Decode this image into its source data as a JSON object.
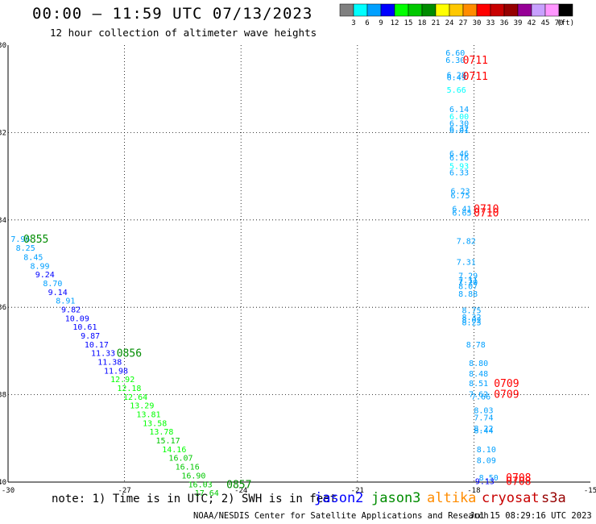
{
  "header": {
    "title": "00:00 – 11:59 UTC 07/13/2023",
    "subtitle": "12 hour collection of altimeter wave heights"
  },
  "colorbar": {
    "unit": "(ft)",
    "swatches": [
      "#808080",
      "#00ffff",
      "#00a0ff",
      "#0000ff",
      "#00ff00",
      "#00c800",
      "#008c00",
      "#ffff00",
      "#ffc800",
      "#ff8c00",
      "#ff0000",
      "#c80000",
      "#960000",
      "#960096",
      "#c8a0ff",
      "#ff96ff",
      "#000000"
    ],
    "labels": [
      "3",
      "6",
      "9",
      "12",
      "15",
      "18",
      "21",
      "24",
      "27",
      "30",
      "33",
      "36",
      "39",
      "42",
      "45",
      "70"
    ]
  },
  "footer": {
    "note": "note: 1) Time is in UTC; 2) SWH is in feet",
    "credit": "NOAA/NESDIS Center for Satellite Applications and Research",
    "timestamp": "Jul 15 08:29:16 UTC 2023",
    "satellites": [
      {
        "name": "jason2",
        "color": "#0000ff"
      },
      {
        "name": "jason3",
        "color": "#008c00"
      },
      {
        "name": "altika",
        "color": "#ff8c00"
      },
      {
        "name": "cryosat",
        "color": "#c80000"
      },
      {
        "name": "s3a",
        "color": "#960000"
      }
    ]
  },
  "chart_data": {
    "type": "scatter",
    "title": "",
    "xlabel": "",
    "ylabel": "",
    "xlim": [
      -30,
      -15
    ],
    "ylim": [
      -40,
      -30
    ],
    "x_ticks": [
      "-30",
      "-27",
      "-24",
      "-21",
      "-18",
      "-15"
    ],
    "y_ticks": [
      "-30",
      "-32",
      "-34",
      "-36",
      "-38",
      "-40"
    ],
    "grid": "dotted",
    "points": [
      {
        "x": -18.48,
        "y": -30.18,
        "text": "6.60",
        "color": "#00a0ff"
      },
      {
        "x": -18.48,
        "y": -30.35,
        "text": "6.30",
        "color": "#00a0ff"
      },
      {
        "x": -18.45,
        "y": -30.69,
        "text": "6.28",
        "color": "#00a0ff"
      },
      {
        "x": -18.45,
        "y": -30.75,
        "text": "6.49",
        "color": "#00a0ff"
      },
      {
        "x": -18.45,
        "y": -31.03,
        "text": "5.66",
        "color": "#00ffff"
      },
      {
        "x": -18.38,
        "y": -31.48,
        "text": "6.14",
        "color": "#00a0ff"
      },
      {
        "x": -18.38,
        "y": -31.64,
        "text": "6.00",
        "color": "#00ffff"
      },
      {
        "x": -18.38,
        "y": -31.8,
        "text": "6.30",
        "color": "#00a0ff"
      },
      {
        "x": -18.38,
        "y": -31.92,
        "text": "6.32",
        "color": "#00a0ff"
      },
      {
        "x": -18.38,
        "y": -31.96,
        "text": "6.01",
        "color": "#00a0ff"
      },
      {
        "x": -18.38,
        "y": -32.49,
        "text": "6.46",
        "color": "#00a0ff"
      },
      {
        "x": -18.38,
        "y": -32.58,
        "text": "6.16",
        "color": "#00a0ff"
      },
      {
        "x": -18.38,
        "y": -32.78,
        "text": "5.93",
        "color": "#00ffff"
      },
      {
        "x": -18.38,
        "y": -32.92,
        "text": "6.33",
        "color": "#00a0ff"
      },
      {
        "x": -18.35,
        "y": -33.35,
        "text": "6.23",
        "color": "#00a0ff"
      },
      {
        "x": -18.35,
        "y": -33.45,
        "text": "6.75",
        "color": "#00a0ff"
      },
      {
        "x": -18.31,
        "y": -33.75,
        "text": "6.41",
        "color": "#00a0ff"
      },
      {
        "x": -18.31,
        "y": -33.85,
        "text": "6.65",
        "color": "#00a0ff"
      },
      {
        "x": -18.2,
        "y": -34.49,
        "text": "7.82",
        "color": "#00a0ff"
      },
      {
        "x": -18.2,
        "y": -34.97,
        "text": "7.31",
        "color": "#00a0ff"
      },
      {
        "x": -18.15,
        "y": -35.29,
        "text": "7.29",
        "color": "#00a0ff"
      },
      {
        "x": -18.15,
        "y": -35.39,
        "text": "7.11",
        "color": "#00a0ff"
      },
      {
        "x": -18.15,
        "y": -35.43,
        "text": "7.20",
        "color": "#00a0ff"
      },
      {
        "x": -18.15,
        "y": -35.53,
        "text": "8.07",
        "color": "#00a0ff"
      },
      {
        "x": -18.15,
        "y": -35.7,
        "text": "8.88",
        "color": "#00a0ff"
      },
      {
        "x": -18.06,
        "y": -36.08,
        "text": "8.75",
        "color": "#00a0ff"
      },
      {
        "x": -18.06,
        "y": -36.24,
        "text": "8.32",
        "color": "#00a0ff"
      },
      {
        "x": -18.06,
        "y": -36.3,
        "text": "8.02",
        "color": "#00a0ff"
      },
      {
        "x": -18.06,
        "y": -36.36,
        "text": "8.23",
        "color": "#00a0ff"
      },
      {
        "x": -17.95,
        "y": -36.86,
        "text": "8.78",
        "color": "#00a0ff"
      },
      {
        "x": -17.88,
        "y": -37.29,
        "text": "8.80",
        "color": "#00a0ff"
      },
      {
        "x": -17.88,
        "y": -37.53,
        "text": "8.48",
        "color": "#00a0ff"
      },
      {
        "x": -17.88,
        "y": -37.75,
        "text": "8.51",
        "color": "#00a0ff"
      },
      {
        "x": -17.88,
        "y": -38.0,
        "text": "7.62",
        "color": "#00a0ff"
      },
      {
        "x": -17.82,
        "y": -38.05,
        "text": "7.66",
        "color": "#00a0ff"
      },
      {
        "x": -17.75,
        "y": -38.37,
        "text": "8.03",
        "color": "#00a0ff"
      },
      {
        "x": -17.75,
        "y": -38.53,
        "text": "7.74",
        "color": "#00a0ff"
      },
      {
        "x": -17.75,
        "y": -38.78,
        "text": "8.22",
        "color": "#00a0ff"
      },
      {
        "x": -17.75,
        "y": -38.83,
        "text": "8.44",
        "color": "#00a0ff"
      },
      {
        "x": -17.68,
        "y": -39.26,
        "text": "8.10",
        "color": "#00a0ff"
      },
      {
        "x": -17.68,
        "y": -39.51,
        "text": "8.09",
        "color": "#00a0ff"
      },
      {
        "x": -17.62,
        "y": -39.91,
        "text": "8.50",
        "color": "#00a0ff"
      },
      {
        "x": -17.72,
        "y": -39.99,
        "text": "9.13",
        "color": "#0000ff"
      },
      {
        "x": -29.68,
        "y": -34.45,
        "text": "7.96",
        "color": "#00a0ff"
      },
      {
        "x": -29.55,
        "y": -34.65,
        "text": "8.25",
        "color": "#00a0ff"
      },
      {
        "x": -29.35,
        "y": -34.86,
        "text": "8.45",
        "color": "#00a0ff"
      },
      {
        "x": -29.18,
        "y": -35.06,
        "text": "8.99",
        "color": "#00a0ff"
      },
      {
        "x": -29.05,
        "y": -35.26,
        "text": "9.24",
        "color": "#0000ff"
      },
      {
        "x": -28.85,
        "y": -35.46,
        "text": "8.70",
        "color": "#00a0ff"
      },
      {
        "x": -28.72,
        "y": -35.66,
        "text": "9.14",
        "color": "#0000ff"
      },
      {
        "x": -28.52,
        "y": -35.86,
        "text": "8.91",
        "color": "#00a0ff"
      },
      {
        "x": -28.38,
        "y": -36.06,
        "text": "9.82",
        "color": "#0000ff"
      },
      {
        "x": -28.22,
        "y": -36.26,
        "text": "10.09",
        "color": "#0000ff"
      },
      {
        "x": -28.02,
        "y": -36.46,
        "text": "10.61",
        "color": "#0000ff"
      },
      {
        "x": -27.88,
        "y": -36.66,
        "text": "9.87",
        "color": "#0000ff"
      },
      {
        "x": -27.72,
        "y": -36.86,
        "text": "10.17",
        "color": "#0000ff"
      },
      {
        "x": -27.55,
        "y": -37.06,
        "text": "11.33",
        "color": "#0000ff"
      },
      {
        "x": -27.38,
        "y": -37.26,
        "text": "11.38",
        "color": "#0000ff"
      },
      {
        "x": -27.22,
        "y": -37.46,
        "text": "11.98",
        "color": "#0000ff"
      },
      {
        "x": -27.05,
        "y": -37.66,
        "text": "12.92",
        "color": "#00ff00"
      },
      {
        "x": -26.88,
        "y": -37.86,
        "text": "12.18",
        "color": "#00ff00"
      },
      {
        "x": -26.72,
        "y": -38.06,
        "text": "12.64",
        "color": "#00ff00"
      },
      {
        "x": -26.55,
        "y": -38.26,
        "text": "13.29",
        "color": "#00ff00"
      },
      {
        "x": -26.38,
        "y": -38.46,
        "text": "13.81",
        "color": "#00ff00"
      },
      {
        "x": -26.22,
        "y": -38.66,
        "text": "13.58",
        "color": "#00ff00"
      },
      {
        "x": -26.05,
        "y": -38.86,
        "text": "13.78",
        "color": "#00ff00"
      },
      {
        "x": -25.88,
        "y": -39.06,
        "text": "15.17",
        "color": "#00c800"
      },
      {
        "x": -25.72,
        "y": -39.26,
        "text": "14.16",
        "color": "#00ff00"
      },
      {
        "x": -25.55,
        "y": -39.46,
        "text": "16.07",
        "color": "#00c800"
      },
      {
        "x": -25.38,
        "y": -39.66,
        "text": "16.16",
        "color": "#00c800"
      },
      {
        "x": -25.22,
        "y": -39.86,
        "text": "16.90",
        "color": "#00c800"
      },
      {
        "x": -25.05,
        "y": -40.06,
        "text": "16.03",
        "color": "#00c800"
      },
      {
        "x": -24.88,
        "y": -40.26,
        "text": "17.64",
        "color": "#00c800"
      }
    ],
    "pass_labels": [
      {
        "x": -17.96,
        "y": -30.35,
        "text": "0711",
        "color": "#ff0000"
      },
      {
        "x": -17.96,
        "y": -30.72,
        "text": "0711",
        "color": "#ff0000"
      },
      {
        "x": -17.68,
        "y": -33.75,
        "text": "0710",
        "color": "#ff0000"
      },
      {
        "x": -17.68,
        "y": -33.85,
        "text": "0710",
        "color": "#ff0000"
      },
      {
        "x": -17.16,
        "y": -37.75,
        "text": "0709",
        "color": "#ff0000"
      },
      {
        "x": -17.16,
        "y": -38.0,
        "text": "0709",
        "color": "#ff0000"
      },
      {
        "x": -16.85,
        "y": -39.91,
        "text": "0708",
        "color": "#ff0000"
      },
      {
        "x": -16.85,
        "y": -39.99,
        "text": "0708",
        "color": "#ff0000"
      },
      {
        "x": -29.28,
        "y": -34.45,
        "text": "0855",
        "color": "#008c00"
      },
      {
        "x": -26.88,
        "y": -37.06,
        "text": "0856",
        "color": "#008c00"
      },
      {
        "x": -24.05,
        "y": -40.06,
        "text": "0857",
        "color": "#008c00"
      }
    ]
  }
}
